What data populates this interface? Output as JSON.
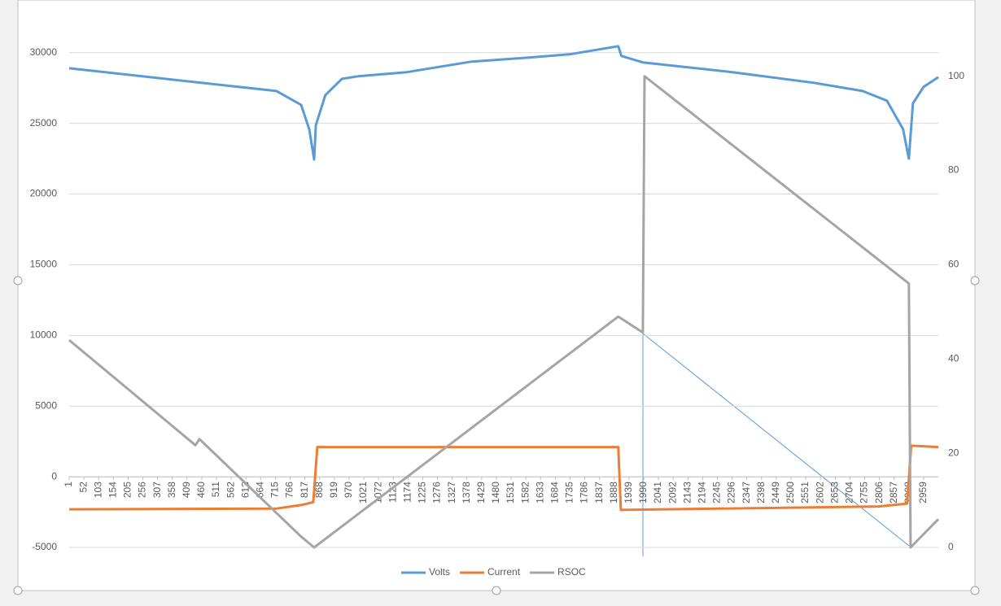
{
  "chart_data": {
    "type": "line",
    "xlim": [
      1,
      3010
    ],
    "xticks": [
      1,
      52,
      103,
      154,
      205,
      256,
      307,
      358,
      409,
      460,
      511,
      562,
      613,
      664,
      715,
      766,
      817,
      868,
      919,
      970,
      1021,
      1072,
      1123,
      1174,
      1225,
      1276,
      1327,
      1378,
      1429,
      1480,
      1531,
      1582,
      1633,
      1684,
      1735,
      1786,
      1837,
      1888,
      1939,
      1990,
      2041,
      2092,
      2143,
      2194,
      2245,
      2296,
      2347,
      2398,
      2449,
      2500,
      2551,
      2602,
      2653,
      2704,
      2755,
      2806,
      2857,
      2908,
      2959
    ],
    "ylim": [
      -5000,
      32000
    ],
    "yticks": [
      -5000,
      0,
      5000,
      10000,
      15000,
      20000,
      25000,
      30000
    ],
    "y2lim": [
      0,
      111
    ],
    "y2ticks": [
      0,
      20,
      40,
      60,
      80,
      100
    ],
    "grid": true,
    "legend": "bottom",
    "series": [
      {
        "name": "Volts",
        "color": "#5b9bd5",
        "x": [
          1,
          719,
          804,
          832,
          849,
          855,
          888,
          945,
          1001,
          1170,
          1395,
          1593,
          1733,
          1902,
          1913,
          1987,
          2297,
          2579,
          2748,
          2832,
          2888,
          2908,
          2922,
          2959,
          3010
        ],
        "values": [
          28900,
          27290,
          26310,
          24580,
          22440,
          24870,
          27000,
          28150,
          28330,
          28620,
          29370,
          29650,
          29880,
          30460,
          29770,
          29310,
          28620,
          27870,
          27290,
          26600,
          24580,
          22500,
          26420,
          27580,
          28270
        ]
      },
      {
        "name": "Current",
        "color": "#ed7d31",
        "x": [
          1,
          719,
          804,
          846,
          860,
          1902,
          1911,
          2804,
          2902,
          2916,
          3010
        ],
        "values": [
          -2300,
          -2250,
          -2000,
          -1800,
          2100,
          2100,
          -2350,
          -2100,
          -1900,
          2200,
          2100
        ]
      },
      {
        "name": "RSOC",
        "color": "#a5a5a5",
        "axis": "y2",
        "x": [
          1,
          438,
          452,
          804,
          849,
          1902,
          1987,
          1993,
          2908,
          2914,
          3010
        ],
        "values": [
          44,
          21.7,
          23,
          2.3,
          0,
          49,
          45.6,
          100,
          56,
          0,
          6
        ]
      }
    ]
  }
}
